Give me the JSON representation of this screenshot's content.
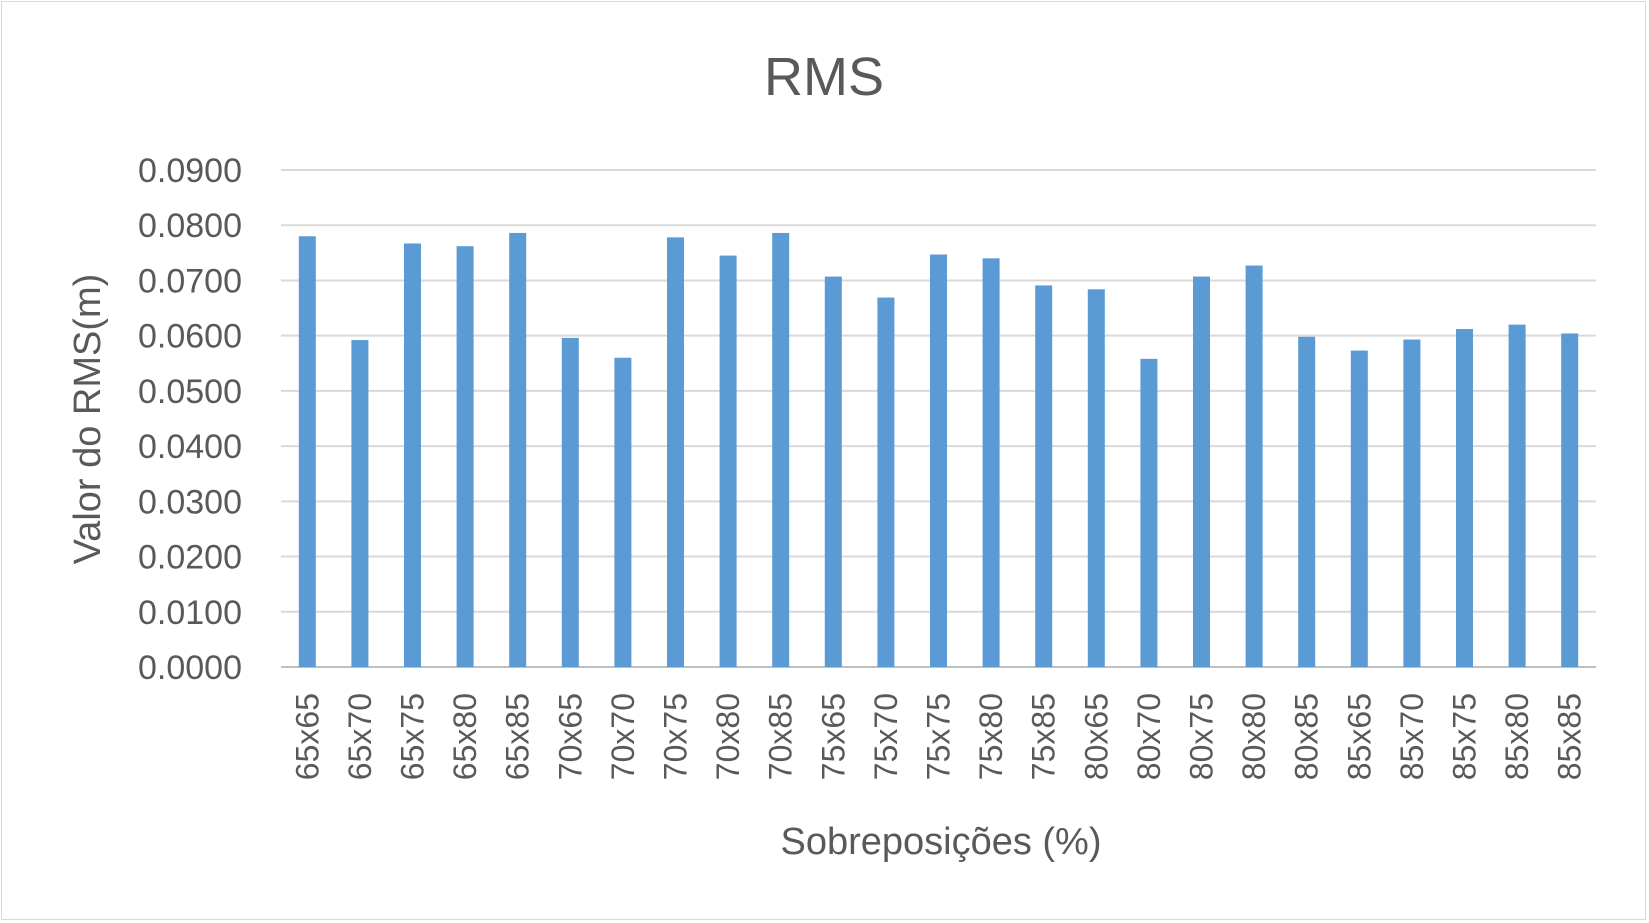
{
  "chart_data": {
    "type": "bar",
    "title": "RMS",
    "xlabel": "Sobreposições (%)",
    "ylabel": "Valor do RMS(m)",
    "ylim": [
      0,
      0.09
    ],
    "yticks": [
      "0.0000",
      "0.0100",
      "0.0200",
      "0.0300",
      "0.0400",
      "0.0500",
      "0.0600",
      "0.0700",
      "0.0800",
      "0.0900"
    ],
    "grid": true,
    "bar_color": "#5b9bd5",
    "categories": [
      "65x65",
      "65x70",
      "65x75",
      "65x80",
      "65x85",
      "70x65",
      "70x70",
      "70x75",
      "70x80",
      "70x85",
      "75x65",
      "75x70",
      "75x75",
      "75x80",
      "75x85",
      "80x65",
      "80x70",
      "80x75",
      "80x80",
      "80x85",
      "85x65",
      "85x70",
      "85x75",
      "85x80",
      "85x85"
    ],
    "values": [
      0.078,
      0.0592,
      0.0767,
      0.0762,
      0.0786,
      0.0596,
      0.056,
      0.0778,
      0.0745,
      0.0786,
      0.0707,
      0.0669,
      0.0747,
      0.074,
      0.0691,
      0.0684,
      0.0558,
      0.0707,
      0.0727,
      0.0598,
      0.0573,
      0.0593,
      0.0612,
      0.062,
      0.0604
    ]
  }
}
